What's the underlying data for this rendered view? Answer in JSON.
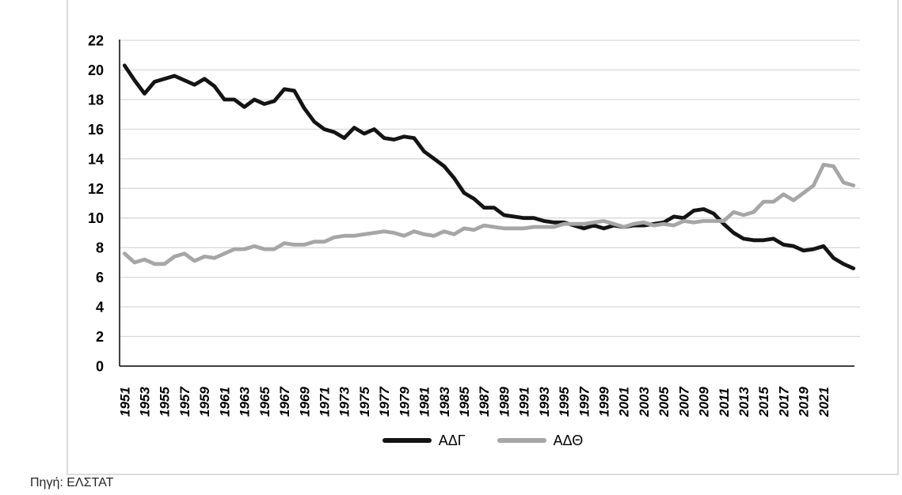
{
  "source_note": "Πηγή: ΕΛΣΤΑΤ",
  "colors": {
    "series_black": "#141414",
    "series_gray": "#a6a6a6",
    "gridline": "#d9d9d9",
    "axis": "#000000",
    "frame_border": "#dcdcdc",
    "background": "#ffffff"
  },
  "chart_data": {
    "type": "line",
    "title": "",
    "xlabel": "",
    "ylabel": "",
    "ylim": [
      0,
      22
    ],
    "ytick_step": 2,
    "grid": "horizontal-light",
    "legend_position": "bottom-center",
    "x": [
      1951,
      1952,
      1953,
      1954,
      1955,
      1956,
      1957,
      1958,
      1959,
      1960,
      1961,
      1962,
      1963,
      1964,
      1965,
      1966,
      1967,
      1968,
      1969,
      1970,
      1971,
      1972,
      1973,
      1974,
      1975,
      1976,
      1977,
      1978,
      1979,
      1980,
      1981,
      1982,
      1983,
      1984,
      1985,
      1986,
      1987,
      1988,
      1989,
      1990,
      1991,
      1992,
      1993,
      1994,
      1995,
      1996,
      1997,
      1998,
      1999,
      2000,
      2001,
      2002,
      2003,
      2004,
      2005,
      2006,
      2007,
      2008,
      2009,
      2010,
      2011,
      2012,
      2013,
      2014,
      2015,
      2016,
      2017,
      2018,
      2019,
      2020,
      2021,
      2022,
      2023,
      2024
    ],
    "xtick_labels": [
      "1951",
      "1953",
      "1955",
      "1957",
      "1959",
      "1961",
      "1963",
      "1965",
      "1967",
      "1969",
      "1971",
      "1973",
      "1975",
      "1977",
      "1979",
      "1981",
      "1983",
      "1985",
      "1987",
      "1989",
      "1991",
      "1993",
      "1995",
      "1997",
      "1999",
      "2001",
      "2003",
      "2005",
      "2007",
      "2009",
      "2011",
      "2013",
      "2015",
      "2017",
      "2019",
      "2021"
    ],
    "series": [
      {
        "name": "ΑΔΓ",
        "color": "#141414",
        "values": [
          20.3,
          19.3,
          18.4,
          19.2,
          19.4,
          19.6,
          19.3,
          19.0,
          19.4,
          18.9,
          18.0,
          18.0,
          17.5,
          18.0,
          17.7,
          17.9,
          18.7,
          18.6,
          17.4,
          16.5,
          16.0,
          15.8,
          15.4,
          16.1,
          15.7,
          16.0,
          15.4,
          15.3,
          15.5,
          15.4,
          14.5,
          14.0,
          13.5,
          12.7,
          11.7,
          11.3,
          10.7,
          10.7,
          10.2,
          10.1,
          10.0,
          10.0,
          9.8,
          9.7,
          9.7,
          9.5,
          9.3,
          9.5,
          9.3,
          9.5,
          9.4,
          9.5,
          9.5,
          9.6,
          9.7,
          10.1,
          10.0,
          10.5,
          10.6,
          10.3,
          9.6,
          9.0,
          8.6,
          8.5,
          8.5,
          8.6,
          8.2,
          8.1,
          7.8,
          7.9,
          8.1,
          7.3,
          6.9,
          6.6
        ]
      },
      {
        "name": "ΑΔΘ",
        "color": "#a6a6a6",
        "values": [
          7.6,
          7.0,
          7.2,
          6.9,
          6.9,
          7.4,
          7.6,
          7.1,
          7.4,
          7.3,
          7.6,
          7.9,
          7.9,
          8.1,
          7.9,
          7.9,
          8.3,
          8.2,
          8.2,
          8.4,
          8.4,
          8.7,
          8.8,
          8.8,
          8.9,
          9.0,
          9.1,
          9.0,
          8.8,
          9.1,
          8.9,
          8.8,
          9.1,
          8.9,
          9.3,
          9.2,
          9.5,
          9.4,
          9.3,
          9.3,
          9.3,
          9.4,
          9.4,
          9.4,
          9.6,
          9.6,
          9.6,
          9.7,
          9.8,
          9.6,
          9.4,
          9.6,
          9.7,
          9.5,
          9.6,
          9.5,
          9.8,
          9.7,
          9.8,
          9.8,
          9.8,
          10.4,
          10.2,
          10.4,
          11.1,
          11.1,
          11.6,
          11.2,
          11.7,
          12.2,
          13.6,
          13.5,
          12.4,
          12.2
        ]
      }
    ]
  },
  "legend": {
    "items": [
      {
        "label": "ΑΔΓ",
        "color": "#141414"
      },
      {
        "label": "ΑΔΘ",
        "color": "#a6a6a6"
      }
    ]
  }
}
